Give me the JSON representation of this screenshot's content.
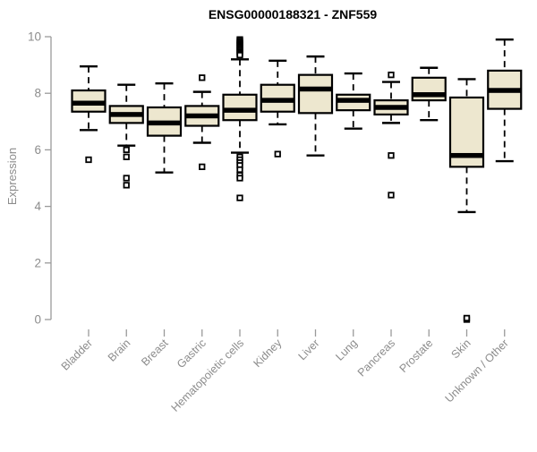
{
  "chart_data": {
    "type": "boxplot",
    "title": "ENSG00000188321 - ZNF559",
    "ylabel": "Expression",
    "xlabel": "",
    "ylim": [
      0,
      10
    ],
    "yticks": [
      0,
      2,
      4,
      6,
      8,
      10
    ],
    "grid": false,
    "legend": "none",
    "categories": [
      "Bladder",
      "Brain",
      "Breast",
      "Gastric",
      "Hematopoietic cells",
      "Kidney",
      "Liver",
      "Lung",
      "Pancreas",
      "Prostate",
      "Skin",
      "Unknown / Other"
    ],
    "series": [
      {
        "category": "Bladder",
        "whisker_low": 6.7,
        "q1": 7.35,
        "median": 7.65,
        "q3": 8.1,
        "whisker_high": 8.95,
        "outliers": [
          5.65
        ]
      },
      {
        "category": "Brain",
        "whisker_low": 6.15,
        "q1": 6.95,
        "median": 7.25,
        "q3": 7.55,
        "whisker_high": 8.3,
        "outliers": [
          6.0,
          5.75,
          5.0,
          4.75
        ]
      },
      {
        "category": "Breast",
        "whisker_low": 5.2,
        "q1": 6.5,
        "median": 6.95,
        "q3": 7.5,
        "whisker_high": 8.35,
        "outliers": []
      },
      {
        "category": "Gastric",
        "whisker_low": 6.25,
        "q1": 6.85,
        "median": 7.2,
        "q3": 7.55,
        "whisker_high": 8.05,
        "outliers": [
          8.55,
          5.4
        ]
      },
      {
        "category": "Hematopoietic cells",
        "whisker_low": 5.9,
        "q1": 7.05,
        "median": 7.4,
        "q3": 7.95,
        "whisker_high": 9.2,
        "outliers": [
          9.9,
          9.85,
          9.8,
          9.75,
          9.7,
          9.65,
          9.6,
          9.55,
          9.5,
          9.45,
          9.4,
          9.35,
          5.75,
          5.65,
          5.55,
          5.45,
          5.3,
          5.1,
          5.0,
          4.3
        ]
      },
      {
        "category": "Kidney",
        "whisker_low": 6.9,
        "q1": 7.35,
        "median": 7.75,
        "q3": 8.3,
        "whisker_high": 9.15,
        "outliers": [
          5.85
        ]
      },
      {
        "category": "Liver",
        "whisker_low": 5.8,
        "q1": 7.3,
        "median": 8.15,
        "q3": 8.65,
        "whisker_high": 9.3,
        "outliers": []
      },
      {
        "category": "Lung",
        "whisker_low": 6.75,
        "q1": 7.4,
        "median": 7.75,
        "q3": 7.95,
        "whisker_high": 8.7,
        "outliers": []
      },
      {
        "category": "Pancreas",
        "whisker_low": 6.95,
        "q1": 7.25,
        "median": 7.5,
        "q3": 7.75,
        "whisker_high": 8.4,
        "outliers": [
          8.65,
          5.8,
          4.4
        ]
      },
      {
        "category": "Prostate",
        "whisker_low": 7.05,
        "q1": 7.75,
        "median": 7.95,
        "q3": 8.55,
        "whisker_high": 8.9,
        "outliers": []
      },
      {
        "category": "Skin",
        "whisker_low": 3.8,
        "q1": 5.4,
        "median": 5.8,
        "q3": 7.85,
        "whisker_high": 8.5,
        "outliers": [
          0.0,
          0.05
        ]
      },
      {
        "category": "Unknown / Other",
        "whisker_low": 5.6,
        "q1": 7.45,
        "median": 8.1,
        "q3": 8.8,
        "whisker_high": 9.9,
        "outliers": []
      }
    ],
    "colors": {
      "box_fill": "#EDE7CF",
      "box_stroke": "#000000",
      "median": "#000000",
      "whisker": "#000000",
      "outlier_stroke": "#000000",
      "axis": "#9A9A9A",
      "tick_label": "#8C8C8C",
      "title": "#000000",
      "background": "#FFFFFF"
    }
  }
}
